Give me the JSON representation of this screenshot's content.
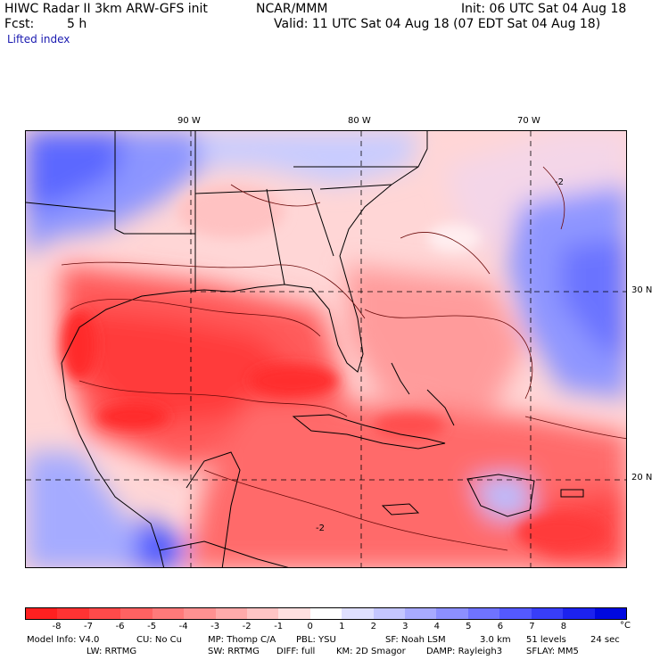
{
  "header": {
    "model_title": "HIWC Radar II 3km ARW-GFS init",
    "org": "NCAR/MMM",
    "init": "Init: 06 UTC Sat 04 Aug 18",
    "fcst_label": "Fcst:",
    "fcst_value": "5 h",
    "valid": "Valid: 11 UTC Sat 04 Aug 18 (07 EDT Sat 04 Aug 18)",
    "field": "Lifted index"
  },
  "map": {
    "lon_labels": [
      "90 W",
      "80 W",
      "70 W"
    ],
    "lat_labels": [
      "30 N",
      "20 N"
    ],
    "contour_labels": [
      "-2",
      "-2"
    ]
  },
  "colorbar": {
    "unit": "°C",
    "labels": [
      "-8",
      "-7",
      "-6",
      "-5",
      "-4",
      "-3",
      "-2",
      "-1",
      "0",
      "1",
      "2",
      "3",
      "4",
      "5",
      "6",
      "7",
      "8"
    ],
    "colors": [
      "#ff2020",
      "#ff3333",
      "#ff4a4a",
      "#ff6262",
      "#ff7a7a",
      "#ff9191",
      "#ffaaaa",
      "#ffc4c4",
      "#ffe0e0",
      "#ffffff",
      "#dfe0ff",
      "#c4c6ff",
      "#a8aaff",
      "#8c8fff",
      "#6f73ff",
      "#5459ff",
      "#383ef8",
      "#1c22ee",
      "#0008e0"
    ]
  },
  "footer": {
    "line1": [
      "Model Info: V4.0",
      "CU: No Cu",
      "MP: Thomp C/A",
      "PBL: YSU",
      "SF: Noah LSM",
      "3.0 km",
      "51 levels",
      "24 sec"
    ],
    "line2": [
      "LW: RRTMG",
      "SW: RRTMG",
      "DIFF: full",
      "KM: 2D Smagor",
      "DAMP: Rayleigh3",
      "SFLAY: MM5"
    ]
  }
}
